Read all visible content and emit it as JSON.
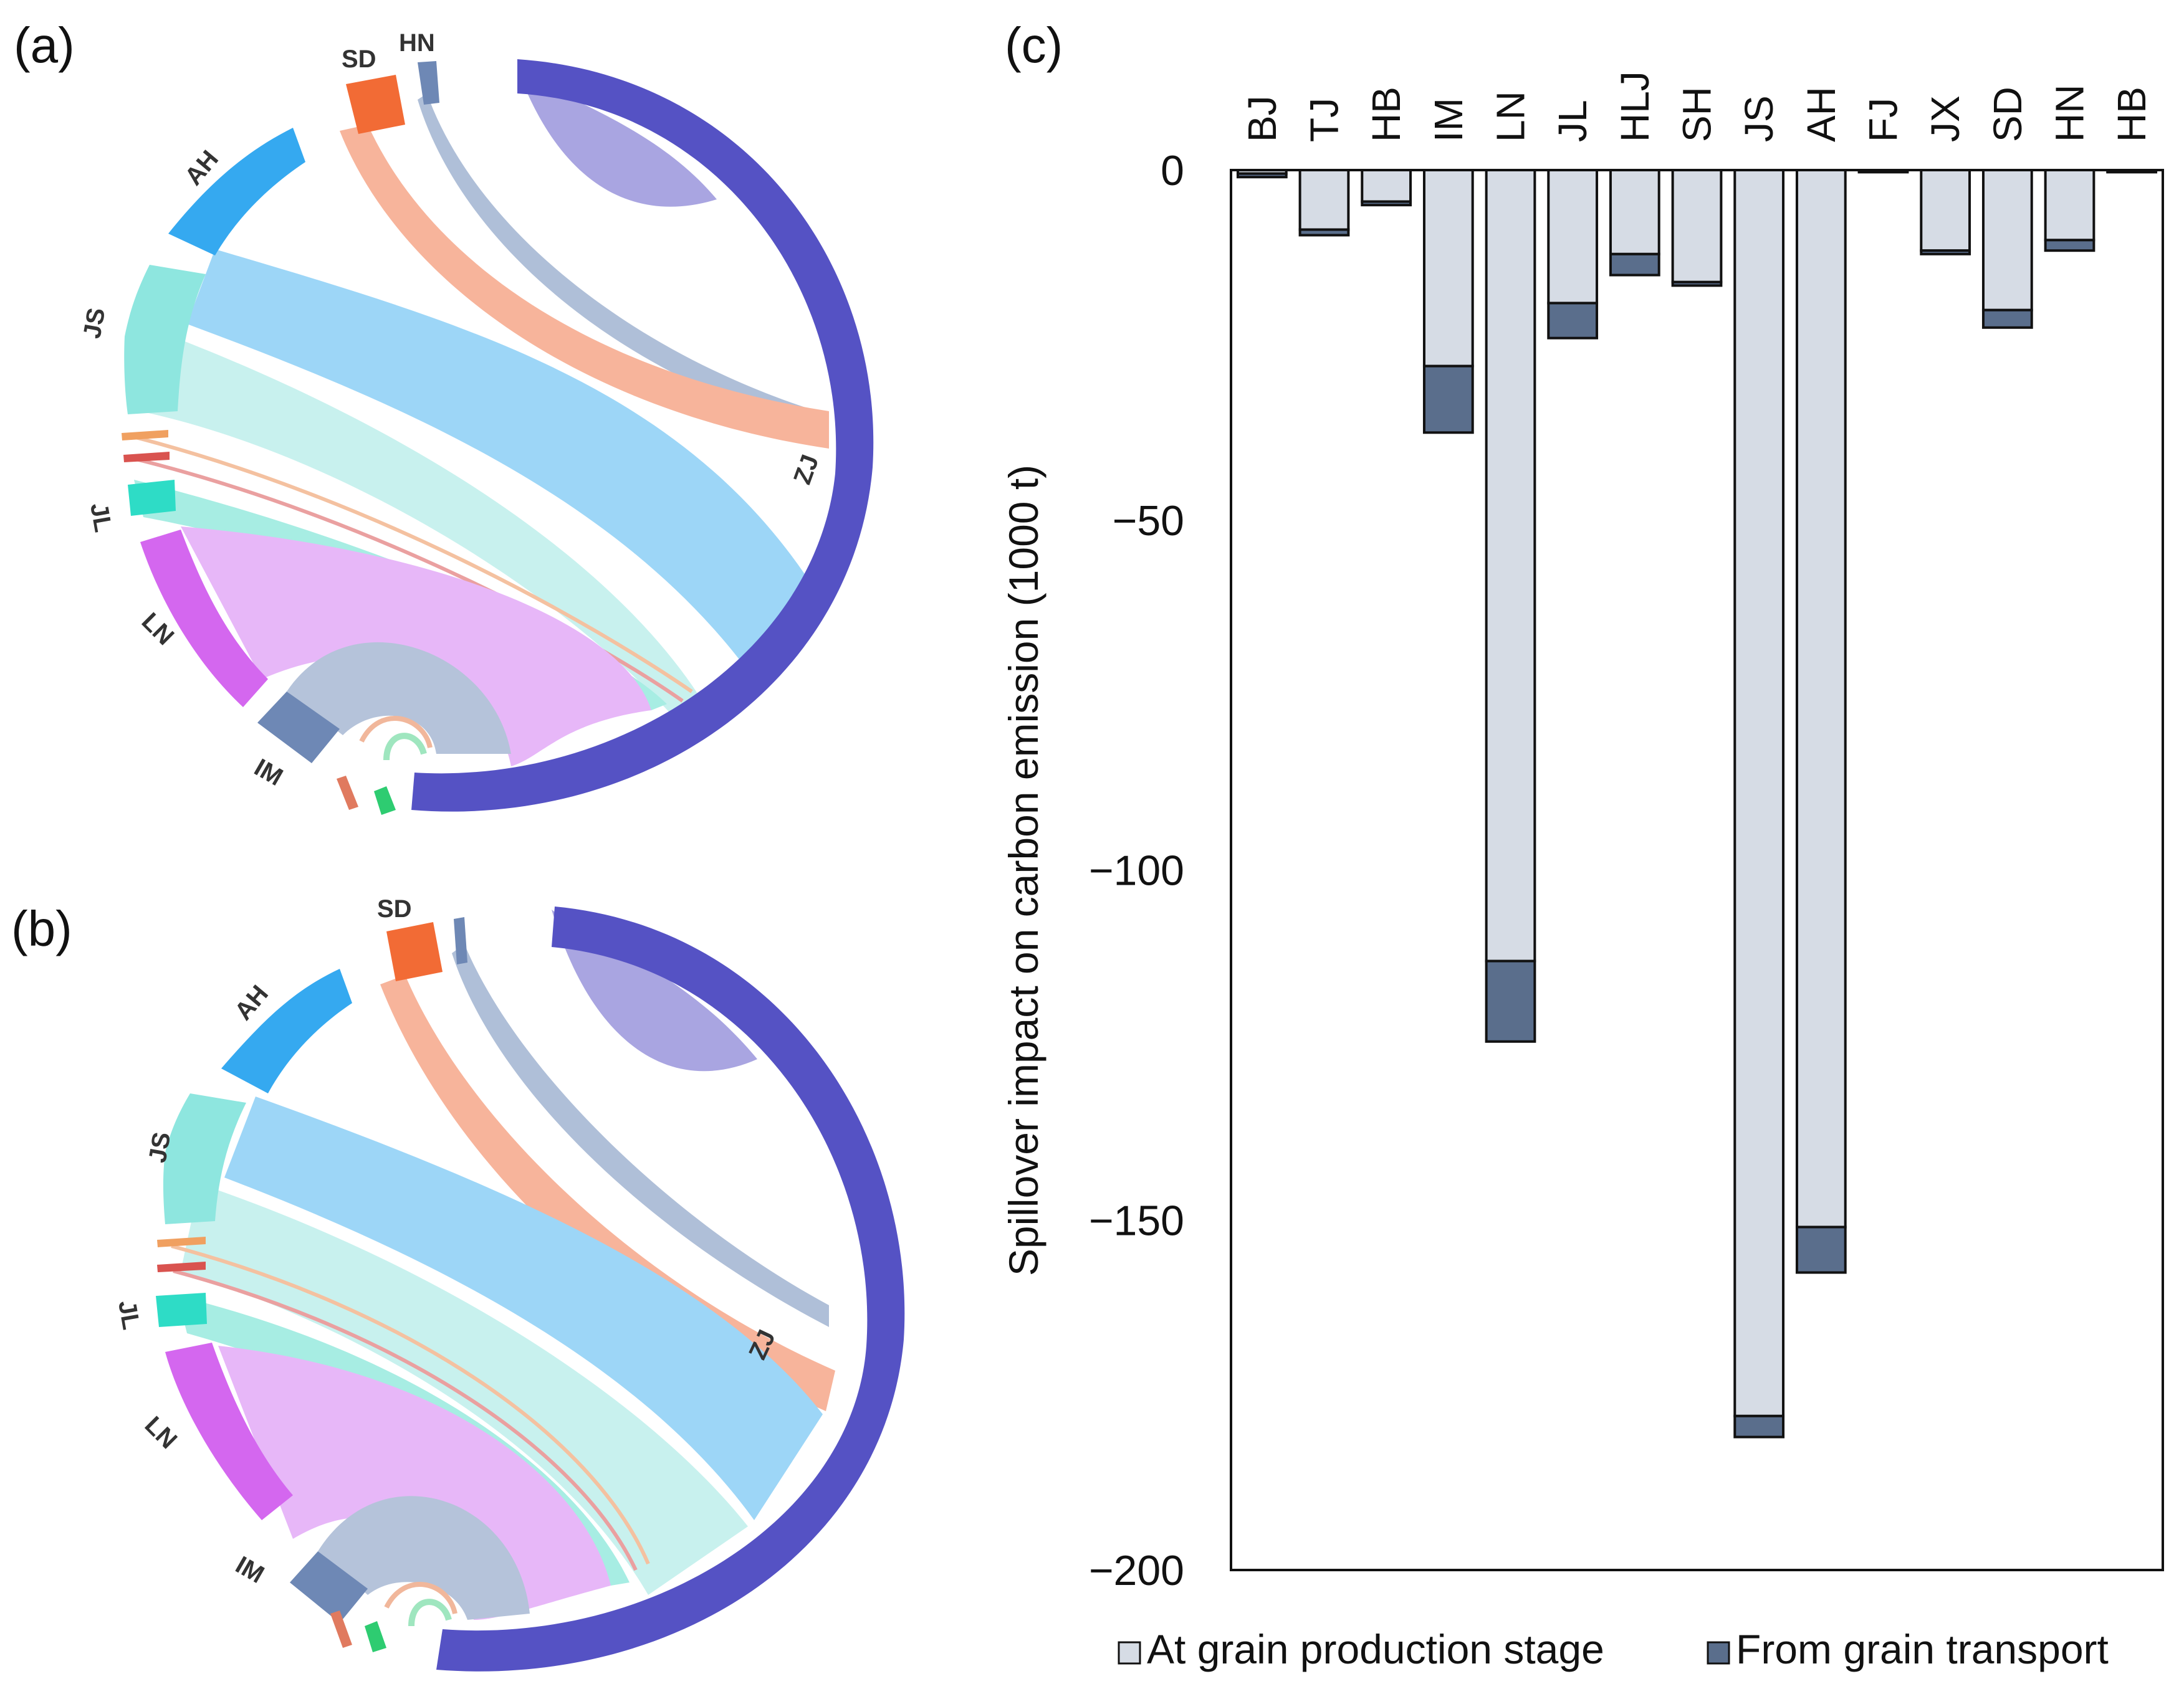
{
  "chart_data": [
    {
      "panel": "(a)",
      "type": "chord",
      "nodes": [
        "ZJ",
        "IM",
        "LN",
        "JL",
        "JS",
        "AH",
        "SD",
        "HN"
      ],
      "flows_into": "ZJ",
      "colors": {
        "ZJ": "#5552C4",
        "IM": "#6E88B5",
        "LN": "#D467EF",
        "JL": "#2EDCC6",
        "JS": "#8EE6DF",
        "AH": "#35A9F0",
        "SD": "#F26B35",
        "HN": "#6E88B5",
        "minor_a": "#F0A060",
        "minor_b": "#D9534F",
        "minor_c": "#2ECC71"
      }
    },
    {
      "panel": "(b)",
      "type": "chord",
      "nodes": [
        "ZJ",
        "IM",
        "LN",
        "JL",
        "JS",
        "AH",
        "SD"
      ],
      "flows_into": "ZJ"
    },
    {
      "panel": "(c)",
      "type": "bar",
      "stacked": true,
      "categories": [
        "BJ",
        "TJ",
        "HB",
        "IM",
        "LN",
        "JL",
        "HLJ",
        "SH",
        "JS",
        "AH",
        "FJ",
        "JX",
        "SD",
        "HN",
        "HB"
      ],
      "series": [
        {
          "name": "At grain production stage",
          "color": "#D6DCE5",
          "values": [
            -0.5,
            -8.5,
            -4.5,
            -28,
            -113,
            -19,
            -12,
            -16,
            -178,
            -151,
            -0.2,
            -11.5,
            -20,
            -10,
            -0.2
          ]
        },
        {
          "name": "From grain transport",
          "color": "#5A6E8C",
          "values": [
            -0.5,
            -0.8,
            -0.5,
            -9.5,
            -11.5,
            -5,
            -3,
            -0.5,
            -3,
            -6.5,
            -0.1,
            -0.5,
            -2.5,
            -1.5,
            -0.1
          ]
        }
      ],
      "ylabel": "Spillover  impact on carbon emission  (1000 t)",
      "ylim": [
        -200,
        0
      ],
      "yticks": [
        0,
        -50,
        -100,
        -150,
        -200
      ],
      "ytick_labels": [
        "0",
        "-50",
        "-100",
        "-150",
        "-200"
      ],
      "legend": [
        "At grain production stage",
        "From grain transport"
      ],
      "legend_position": "bottom"
    }
  ]
}
